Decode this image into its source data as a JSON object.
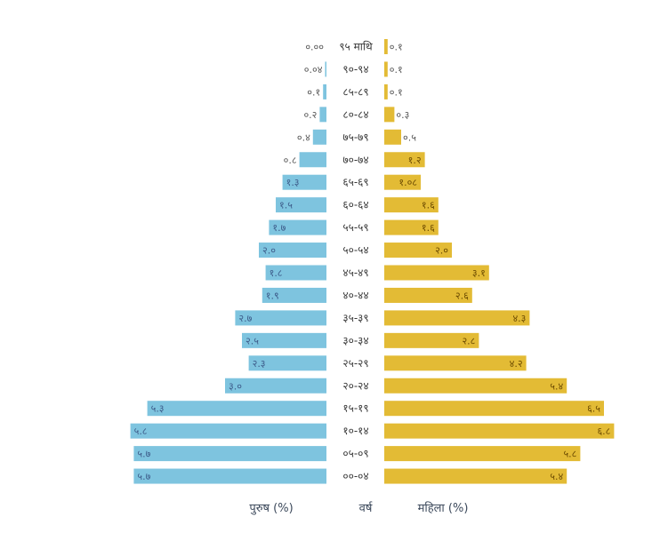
{
  "chart_data": {
    "type": "bar",
    "orientation": "horizontal",
    "layout": "population-pyramid",
    "title": "",
    "categories": [
      "९५ माथि",
      "९०-९४",
      "८५-८९",
      "८०-८४",
      "७५-७९",
      "७०-७४",
      "६५-६९",
      "६०-६४",
      "५५-५९",
      "५०-५४",
      "४५-४९",
      "४०-४४",
      "३५-३९",
      "३०-३४",
      "२५-२९",
      "२०-२४",
      "१५-१९",
      "१०-१४",
      "०५-०९",
      "००-०४"
    ],
    "series": [
      {
        "name": "पुरुष (%)",
        "color": "#7ec4df",
        "values": [
          0.0,
          0.04,
          0.1,
          0.2,
          0.4,
          0.8,
          1.3,
          1.5,
          1.7,
          2.0,
          1.8,
          1.9,
          2.7,
          2.5,
          2.3,
          3.0,
          5.3,
          5.8,
          5.7,
          5.7
        ],
        "labels": [
          "०.००",
          "०.०४",
          "०.१",
          "०.२",
          "०.४",
          "०.८",
          "१.३",
          "१.५",
          "१.७",
          "२.०",
          "१.८",
          "१.९",
          "२.७",
          "२.५",
          "२.३",
          "३.०",
          "५.३",
          "५.८",
          "५.७",
          "५.७"
        ]
      },
      {
        "name": "महिला (%)",
        "color": "#e3bb35",
        "values": [
          0.1,
          0.1,
          0.1,
          0.3,
          0.5,
          1.2,
          1.08,
          1.6,
          1.6,
          2.0,
          3.1,
          2.6,
          4.3,
          2.8,
          4.2,
          5.4,
          6.5,
          6.8,
          5.8,
          5.4
        ],
        "labels": [
          "०.१",
          "०.१",
          "०.१",
          "०.३",
          "०.५",
          "१.२",
          "१.०८",
          "१.६",
          "१.६",
          "२.०",
          "३.१",
          "२.६",
          "४.३",
          "२.८",
          "४.२",
          "५.४",
          "६.५",
          "६.८",
          "५.८",
          "५.४"
        ]
      }
    ],
    "xlabel_left": "पुरुष (%)",
    "xlabel_center": "वर्ष",
    "xlabel_right": "महिला (%)",
    "xlim": [
      0,
      7
    ],
    "grid": false,
    "legend": "none"
  }
}
